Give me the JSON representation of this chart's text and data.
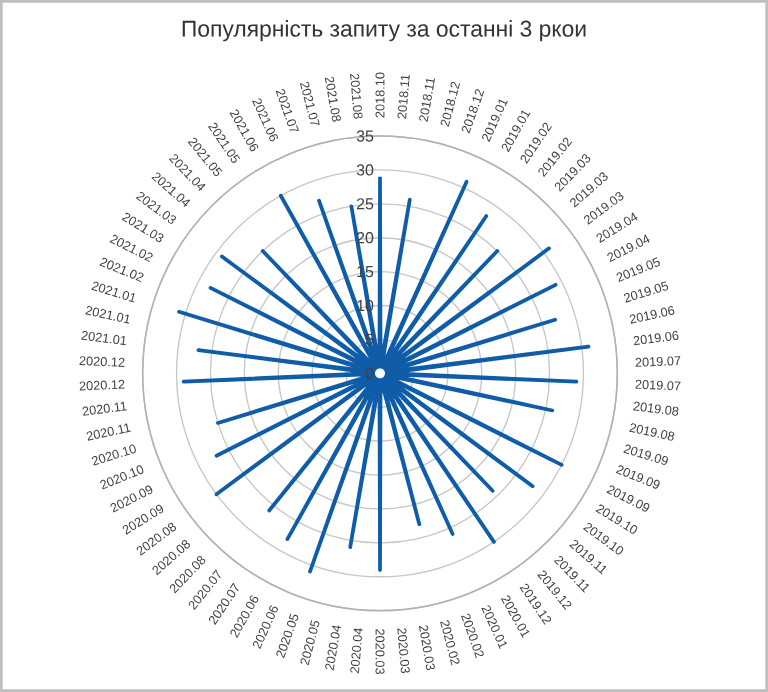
{
  "chart_data": {
    "type": "radar",
    "title": "Популярність запиту за останні 3 ркои",
    "categories": [
      "2018.10",
      "2018.11",
      "2018.11",
      "2018.12",
      "2018.12",
      "2019.01",
      "2019.01",
      "2019.02",
      "2019.02",
      "2019.03",
      "2019.03",
      "2019.03",
      "2019.04",
      "2019.04",
      "2019.05",
      "2019.05",
      "2019.06",
      "2019.06",
      "2019.07",
      "2019.07",
      "2019.08",
      "2019.08",
      "2019.09",
      "2019.09",
      "2019.09",
      "2019.10",
      "2019.10",
      "2019.11",
      "2019.11",
      "2019.12",
      "2019.12",
      "2020.01",
      "2020.01",
      "2020.02",
      "2020.02",
      "2020.03",
      "2020.03",
      "2020.03",
      "2020.04",
      "2020.04",
      "2020.05",
      "2020.05",
      "2020.06",
      "2020.06",
      "2020.07",
      "2020.07",
      "2020.08",
      "2020.08",
      "2020.08",
      "2020.09",
      "2020.09",
      "2020.10",
      "2020.10",
      "2020.11",
      "2020.11",
      "2020.12",
      "2020.12",
      "2021.01",
      "2021.01",
      "2021.01",
      "2021.02",
      "2021.02",
      "2021.03",
      "2021.03",
      "2021.04",
      "2021.04",
      "2021.05",
      "2021.05",
      "2021.06",
      "2021.06",
      "2021.07",
      "2021.07",
      "2021.08",
      "2021.08"
    ],
    "series": [
      {
        "color": "#0f5ca8",
        "values": [
          29,
          1,
          26,
          1,
          1,
          31,
          1,
          28,
          1,
          25,
          1,
          31,
          1,
          29,
          1,
          27,
          1,
          31,
          1,
          29,
          1,
          26,
          1,
          1,
          30,
          1,
          28,
          1,
          24,
          1,
          30,
          1,
          26,
          1,
          23,
          1,
          1,
          29,
          1,
          26,
          1,
          31,
          1,
          28,
          1,
          26,
          1,
          1,
          30,
          1,
          27,
          1,
          25,
          1,
          1,
          29,
          1,
          27,
          1,
          31,
          1,
          28,
          1,
          29,
          1,
          25,
          1,
          1,
          30,
          1,
          27,
          1,
          25,
          1
        ]
      }
    ],
    "ylim": [
      0,
      35
    ],
    "yticks": [
      0,
      5,
      10,
      15,
      20,
      25,
      30,
      35
    ],
    "grid": true
  }
}
